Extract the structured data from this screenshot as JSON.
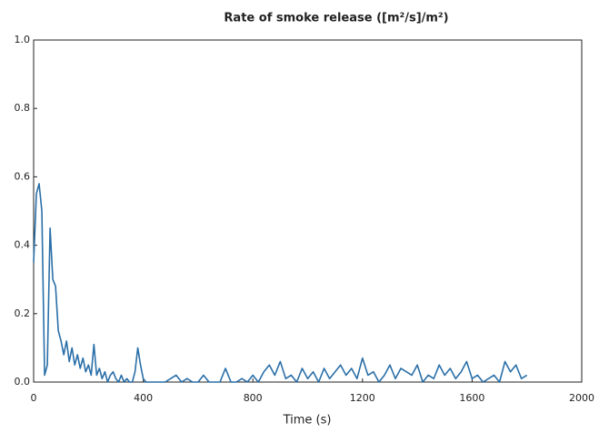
{
  "chart_data": {
    "type": "line",
    "title": "Rate of smoke release  ([m²/s]/m²)",
    "x_label": "Time (s)",
    "x": [
      0,
      10,
      20,
      30,
      40,
      50,
      60,
      70,
      80,
      90,
      100,
      110,
      120,
      130,
      140,
      150,
      160,
      170,
      180,
      190,
      200,
      210,
      220,
      230,
      240,
      250,
      260,
      270,
      280,
      290,
      300,
      310,
      320,
      330,
      340,
      350,
      360,
      370,
      380,
      390,
      400,
      410,
      420,
      440,
      460,
      480,
      500,
      520,
      540,
      560,
      580,
      600,
      620,
      640,
      660,
      680,
      700,
      720,
      740,
      760,
      780,
      800,
      820,
      840,
      860,
      880,
      900,
      920,
      940,
      960,
      980,
      1000,
      1020,
      1040,
      1060,
      1080,
      1100,
      1120,
      1140,
      1160,
      1180,
      1200,
      1220,
      1240,
      1260,
      1280,
      1300,
      1320,
      1340,
      1360,
      1380,
      1400,
      1420,
      1440,
      1460,
      1480,
      1500,
      1520,
      1540,
      1560,
      1580,
      1600,
      1620,
      1640,
      1660,
      1680,
      1700,
      1720,
      1740,
      1760,
      1780,
      1800
    ],
    "values": [
      0.35,
      0.55,
      0.58,
      0.5,
      0.02,
      0.05,
      0.45,
      0.3,
      0.28,
      0.15,
      0.12,
      0.08,
      0.12,
      0.06,
      0.1,
      0.05,
      0.08,
      0.04,
      0.07,
      0.03,
      0.05,
      0.02,
      0.11,
      0.02,
      0.04,
      0.01,
      0.03,
      0,
      0.02,
      0.03,
      0.01,
      0,
      0.02,
      0,
      0.01,
      0,
      0,
      0.03,
      0.1,
      0.05,
      0.01,
      0,
      0,
      0,
      0,
      0,
      0.01,
      0.02,
      0,
      0.01,
      0,
      0,
      0.02,
      0,
      0,
      0,
      0.04,
      0,
      0,
      0.01,
      0,
      0.02,
      0,
      0.03,
      0.05,
      0.02,
      0.06,
      0.01,
      0.02,
      0,
      0.04,
      0.01,
      0.03,
      0,
      0.04,
      0.01,
      0.03,
      0.05,
      0.02,
      0.04,
      0.01,
      0.07,
      0.02,
      0.03,
      0,
      0.02,
      0.05,
      0.01,
      0.04,
      0.03,
      0.02,
      0.05,
      0,
      0.02,
      0.01,
      0.05,
      0.02,
      0.04,
      0.01,
      0.03,
      0.06,
      0.01,
      0.02,
      0,
      0.01,
      0.02,
      0,
      0.06,
      0.03,
      0.05,
      0.01,
      0.02
    ],
    "color": "#2a6fa8",
    "xlim": [
      0,
      2000
    ],
    "xticks": [
      0,
      400,
      800,
      1200,
      1600,
      2000
    ],
    "ylim": [
      0,
      1
    ],
    "yticks": [
      {
        "value": 0,
        "label": "0.0"
      },
      {
        "value": 0.2,
        "label": "0.2"
      },
      {
        "value": 0.4,
        "label": "0.4"
      },
      {
        "value": 0.6,
        "label": "0.6"
      },
      {
        "value": 0.8,
        "label": "0.8"
      },
      {
        "value": 1,
        "label": "1.0"
      }
    ],
    "grid": false
  }
}
